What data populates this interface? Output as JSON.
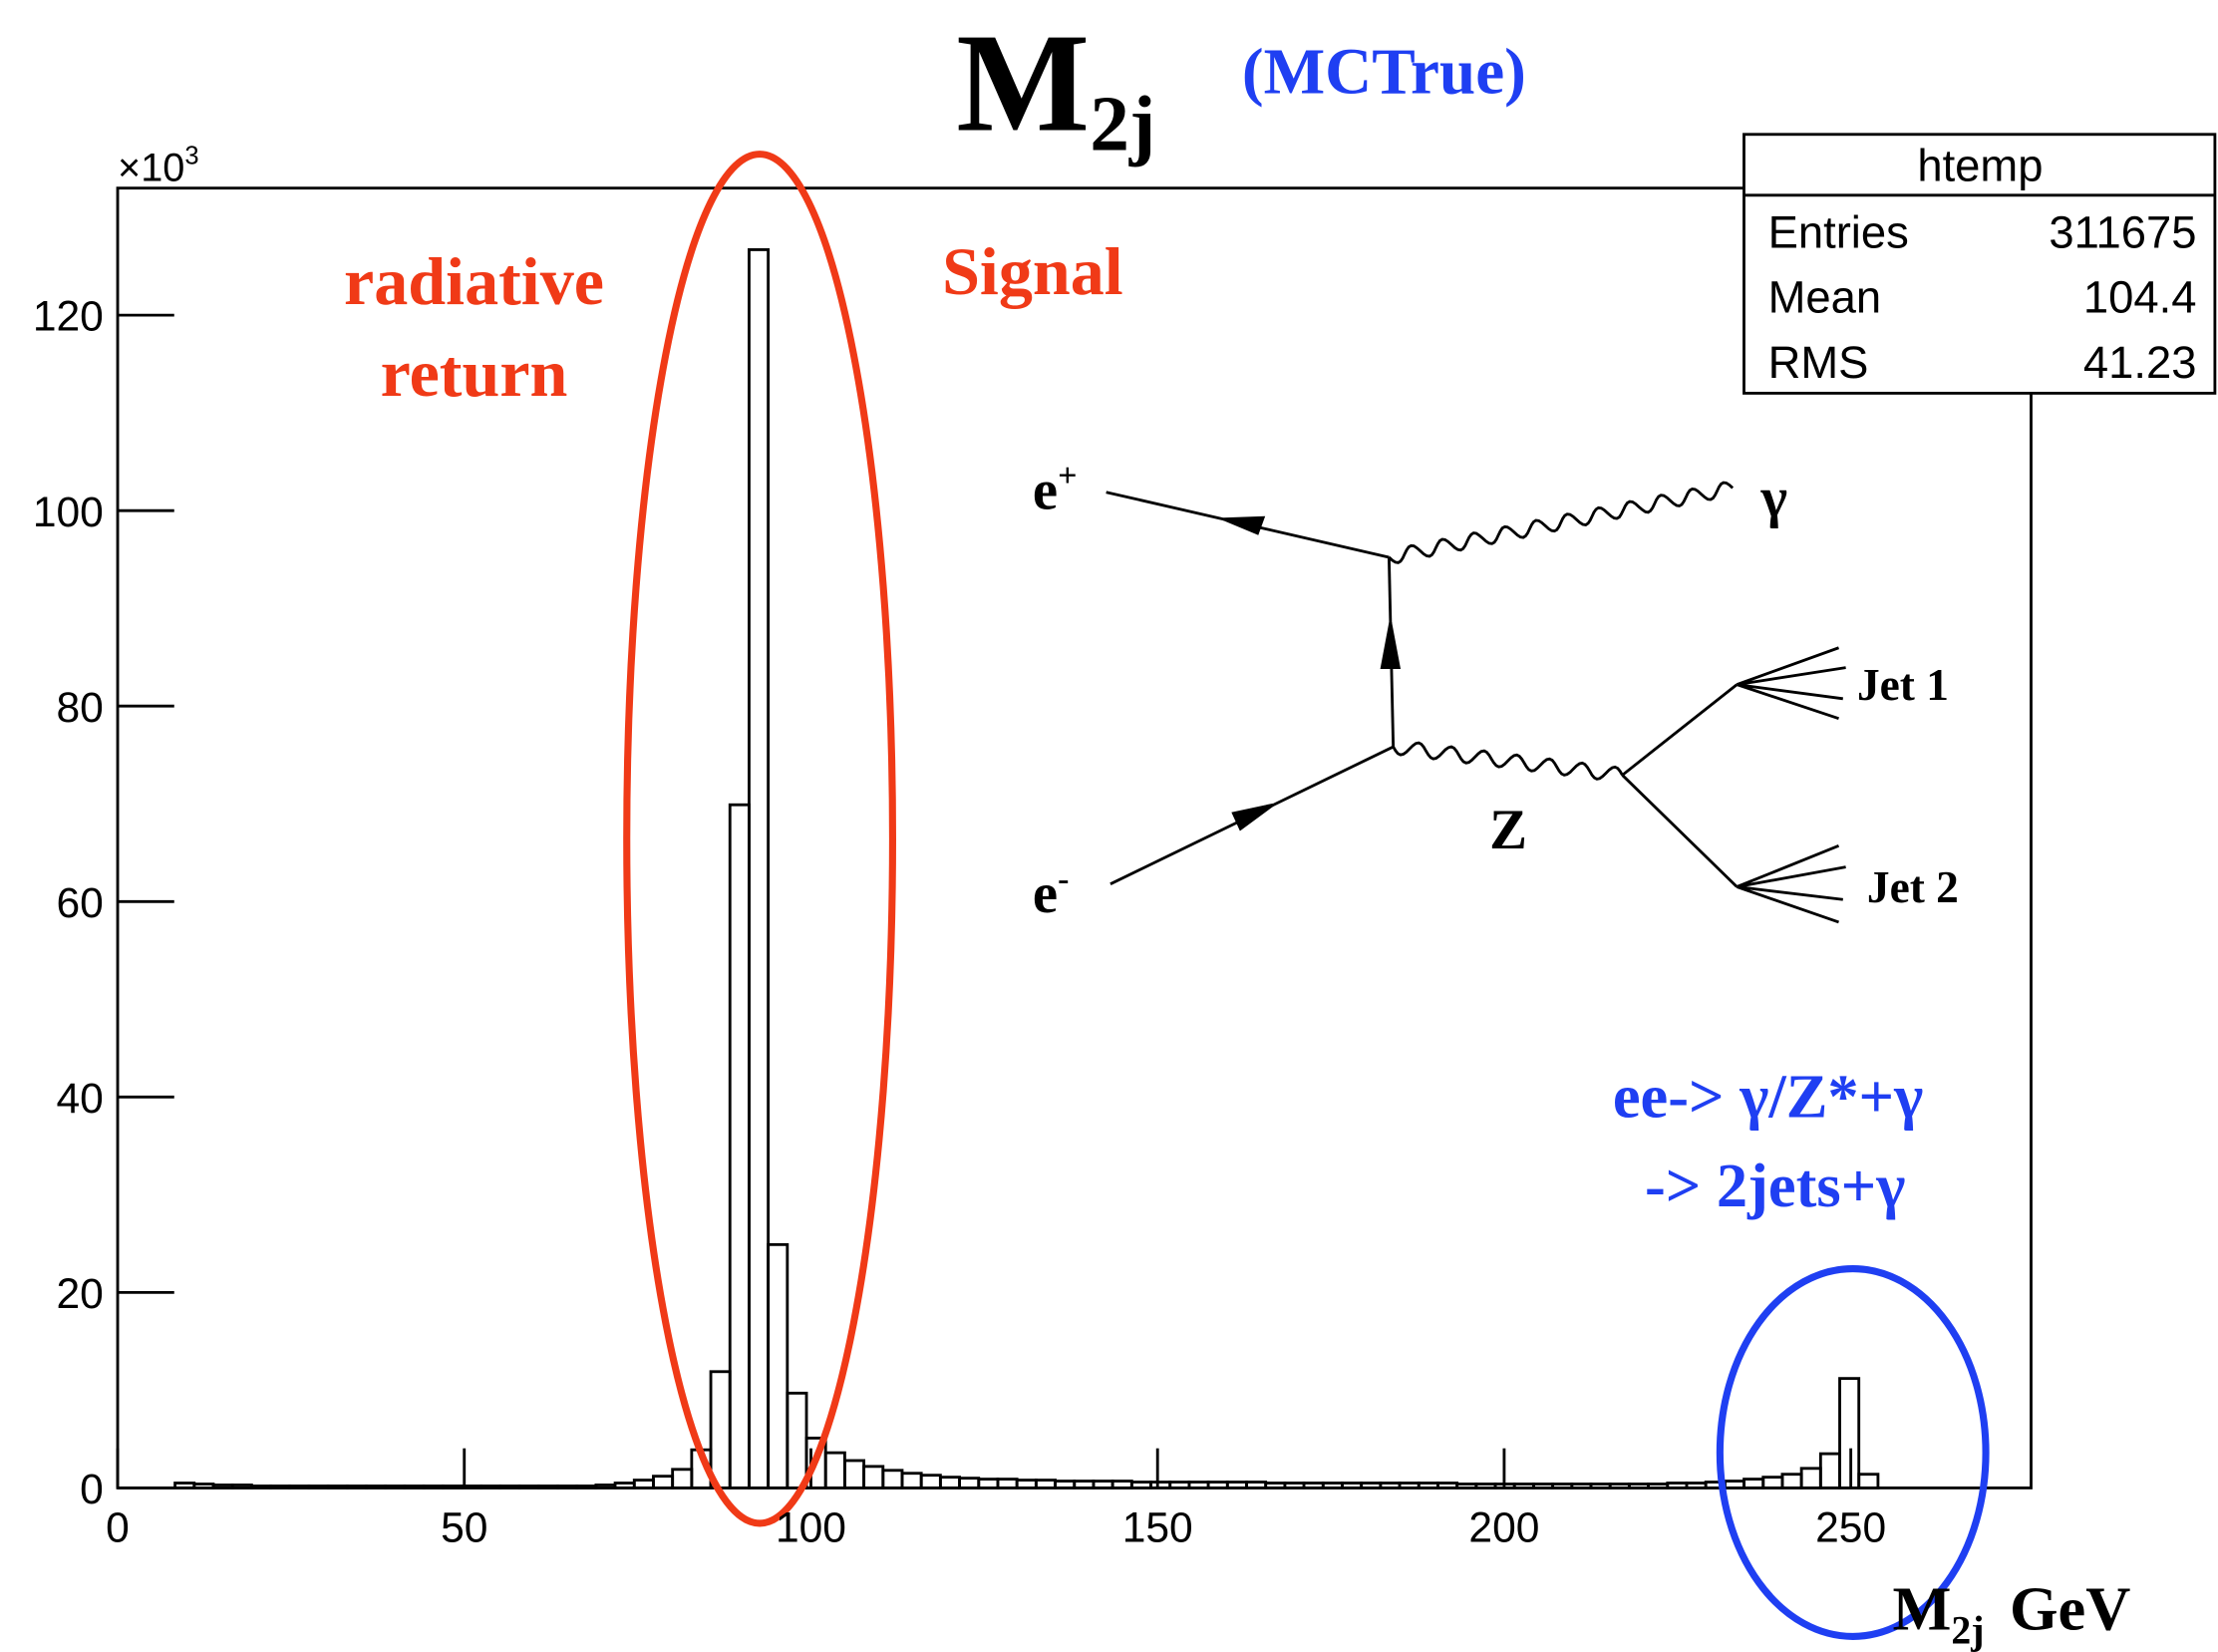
{
  "chart_data": {
    "type": "histogram",
    "title": {
      "main": "M",
      "sub": "2j",
      "note": "(MCTrue)"
    },
    "x_label": {
      "main": "M",
      "sub": "2j",
      "unit": "GeV"
    },
    "y_multiplier": {
      "base": "×10",
      "exponent": "3"
    },
    "color": "#000000",
    "bins": [
      0,
      2.76,
      5.52,
      8.28,
      11.04,
      13.8,
      16.56,
      19.32,
      22.08,
      24.84,
      27.6,
      30.36,
      33.12,
      35.88,
      38.64,
      41.4,
      44.16,
      46.92,
      49.68,
      52.44,
      55.2,
      57.96,
      60.72,
      63.48,
      66.24,
      69,
      71.76,
      74.52,
      77.28,
      80.04,
      82.8,
      85.56,
      88.32,
      91.08,
      93.84,
      96.6,
      99.36,
      102.12,
      104.88,
      107.64,
      110.4,
      113.16,
      115.92,
      118.68,
      121.44,
      124.2,
      126.96,
      129.72,
      132.48,
      135.24,
      138,
      140.76,
      143.52,
      146.28,
      149.04,
      151.8,
      154.56,
      157.32,
      160.08,
      162.84,
      165.6,
      168.36,
      171.12,
      173.88,
      176.64,
      179.4,
      182.16,
      184.92,
      187.68,
      190.44,
      193.2,
      195.96,
      198.72,
      201.48,
      204.24,
      207,
      209.76,
      212.52,
      215.28,
      218.04,
      220.8,
      223.56,
      226.32,
      229.08,
      231.84,
      234.6,
      237.36,
      240.12,
      242.88,
      245.64,
      248.4,
      251.16,
      253.92,
      256.68,
      259.44,
      262.2,
      264.96,
      267.72,
      270.48,
      273.24,
      276
    ],
    "values": [
      0,
      0,
      0,
      0.5,
      0.4,
      0.3,
      0.3,
      0.2,
      0.2,
      0.2,
      0.2,
      0.2,
      0.2,
      0.2,
      0.2,
      0.2,
      0.2,
      0.2,
      0.2,
      0.2,
      0.2,
      0.2,
      0.2,
      0.2,
      0.2,
      0.3,
      0.5,
      0.8,
      1.2,
      1.9,
      3.9,
      11.9,
      69.9,
      126.7,
      24.9,
      9.7,
      5.1,
      3.6,
      2.8,
      2.2,
      1.8,
      1.5,
      1.3,
      1.1,
      1.0,
      0.9,
      0.9,
      0.8,
      0.8,
      0.7,
      0.7,
      0.7,
      0.7,
      0.6,
      0.6,
      0.6,
      0.6,
      0.6,
      0.6,
      0.6,
      0.5,
      0.5,
      0.5,
      0.5,
      0.5,
      0.5,
      0.5,
      0.5,
      0.5,
      0.5,
      0.4,
      0.4,
      0.4,
      0.4,
      0.4,
      0.4,
      0.4,
      0.4,
      0.4,
      0.4,
      0.4,
      0.5,
      0.5,
      0.6,
      0.7,
      0.9,
      1.1,
      1.4,
      2.0,
      3.5,
      11.2,
      1.4,
      0,
      0,
      0,
      0,
      0,
      0,
      0,
      0
    ],
    "xlim": [
      0,
      276
    ],
    "ylim": [
      0,
      133
    ],
    "xticks": [
      0,
      50,
      100,
      150,
      200,
      250
    ],
    "yticks": [
      0,
      20,
      40,
      60,
      80,
      100,
      120
    ],
    "stats": {
      "title": "htemp",
      "rows": [
        [
          "Entries",
          311675
        ],
        [
          "Mean",
          104.4
        ],
        [
          "RMS",
          41.23
        ]
      ]
    },
    "annotations": {
      "radiative": [
        "radiative",
        "return"
      ],
      "signal": "Signal",
      "process": [
        "ee-> γ/Z*+γ",
        "-> 2jets+γ"
      ]
    },
    "diagram": {
      "e_plus": {
        "text": "e",
        "sup": "+"
      },
      "e_minus": {
        "text": "e",
        "sup": "-"
      },
      "photon": "γ",
      "z": "Z",
      "jet1": "Jet 1",
      "jet2": "Jet 2"
    }
  }
}
